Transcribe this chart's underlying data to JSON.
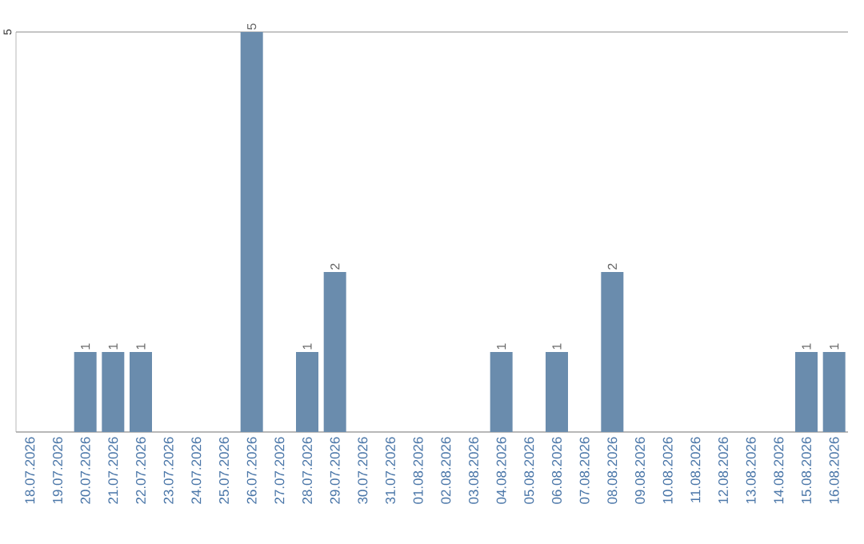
{
  "chart_data": {
    "type": "bar",
    "categories": [
      "18.07.2026",
      "19.07.2026",
      "20.07.2026",
      "21.07.2026",
      "22.07.2026",
      "23.07.2026",
      "24.07.2026",
      "25.07.2026",
      "26.07.2026",
      "27.07.2026",
      "28.07.2026",
      "29.07.2026",
      "30.07.2026",
      "31.07.2026",
      "01.08.2026",
      "02.08.2026",
      "03.08.2026",
      "04.08.2026",
      "05.08.2026",
      "06.08.2026",
      "07.08.2026",
      "08.08.2026",
      "09.08.2026",
      "10.08.2026",
      "11.08.2026",
      "12.08.2026",
      "13.08.2026",
      "14.08.2026",
      "15.08.2026",
      "16.08.2026"
    ],
    "values": [
      0,
      0,
      1,
      1,
      1,
      0,
      0,
      0,
      5,
      0,
      1,
      2,
      0,
      0,
      0,
      0,
      0,
      1,
      0,
      1,
      0,
      2,
      0,
      0,
      0,
      0,
      0,
      0,
      1,
      1
    ],
    "value_labels": [
      null,
      null,
      "1",
      "1",
      "1",
      null,
      null,
      null,
      "5",
      null,
      "1",
      "2",
      null,
      null,
      null,
      null,
      null,
      "1",
      null,
      "1",
      null,
      "2",
      null,
      null,
      null,
      null,
      null,
      null,
      "1",
      "1"
    ],
    "color": "#6a8cad",
    "ylim": [
      0,
      5
    ],
    "yticks": [
      {
        "value": 0,
        "label": null
      },
      5
    ],
    "grid": "y"
  }
}
